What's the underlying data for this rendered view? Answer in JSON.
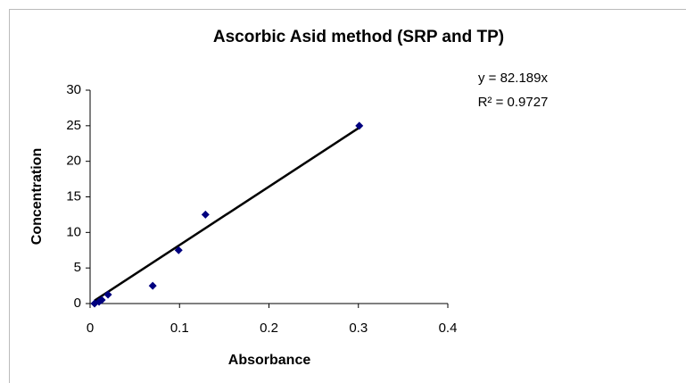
{
  "chart_data": {
    "type": "scatter",
    "title": "Ascorbic Asid method (SRP and TP)",
    "x_label": "Absorbance",
    "y_label": "Concentration",
    "series": [
      {
        "color": "#00007f",
        "x": [
          0.005,
          0.01,
          0.013,
          0.02,
          0.07,
          0.099,
          0.129,
          0.301
        ],
        "values": [
          0,
          0.25,
          0.5,
          1.25,
          2.5,
          7.5,
          12.5,
          25
        ]
      }
    ],
    "xlim": [
      0,
      0.4
    ],
    "xticks": [
      0,
      0.1,
      0.2,
      0.3,
      0.4
    ],
    "ylim": [
      0,
      30
    ],
    "yticks": [
      0,
      5,
      10,
      15,
      20,
      25,
      30
    ],
    "grid": false,
    "trendline": {
      "slope": 82.189,
      "color": "#000000",
      "label": "y = 82.189x",
      "r_squared": 0.9727,
      "r_squared_label": "R² = 0.9727"
    }
  }
}
